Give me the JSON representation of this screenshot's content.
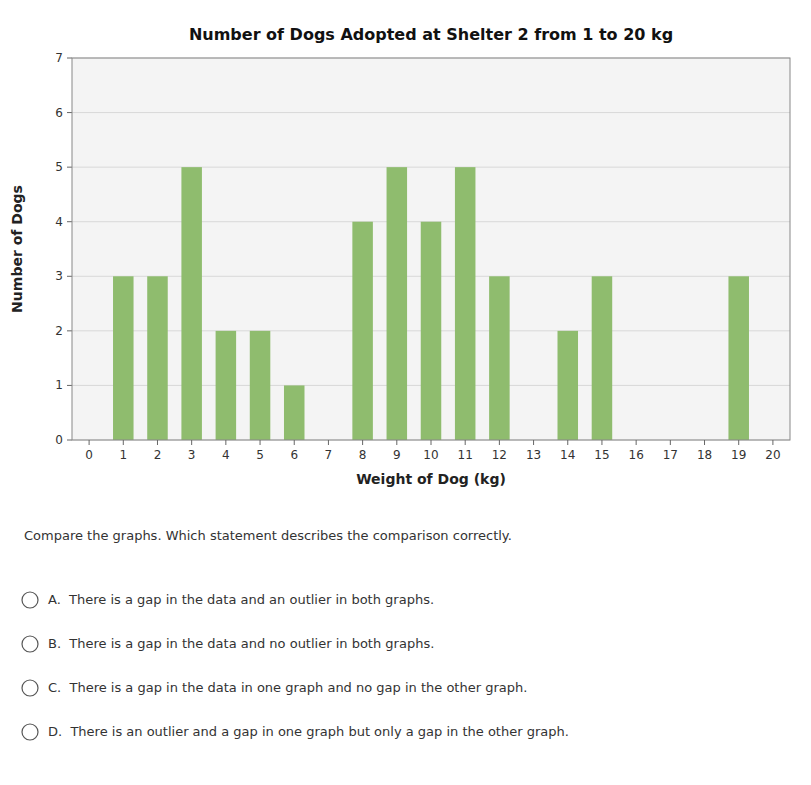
{
  "chart_data": {
    "type": "bar",
    "title": "Number of Dogs Adopted at Shelter 2 from 1 to 20 kg",
    "x_label": "Weight of Dog (kg)",
    "y_label": "Number of Dogs",
    "x": [
      1,
      2,
      3,
      4,
      5,
      6,
      7,
      8,
      9,
      10,
      11,
      12,
      13,
      14,
      15,
      16,
      17,
      18,
      19,
      20
    ],
    "values": [
      3,
      3,
      5,
      2,
      2,
      1,
      0,
      4,
      5,
      4,
      5,
      3,
      0,
      2,
      3,
      0,
      0,
      0,
      3,
      0
    ],
    "color": "#8fbc6e",
    "xlim": [
      -0.5,
      20.5
    ],
    "xticks": [
      0,
      1,
      2,
      3,
      4,
      5,
      6,
      7,
      8,
      9,
      10,
      11,
      12,
      13,
      14,
      15,
      16,
      17,
      18,
      19,
      20
    ],
    "ylim": [
      0,
      7
    ],
    "yticks": [
      0,
      1,
      2,
      3,
      4,
      5,
      6,
      7
    ],
    "grid": true,
    "annotations": [
      "Compare the graphs. Which statement describes the comparison correctly.",
      "A.  There is a gap in the data and an outlier in both graphs.",
      "B.  There is a gap in the data and no outlier in both graphs.",
      "C.  There is a gap in the data in one graph and no gap in the other graph.",
      "D.  There is an outlier and a gap in one graph but only a gap in the other graph."
    ]
  }
}
